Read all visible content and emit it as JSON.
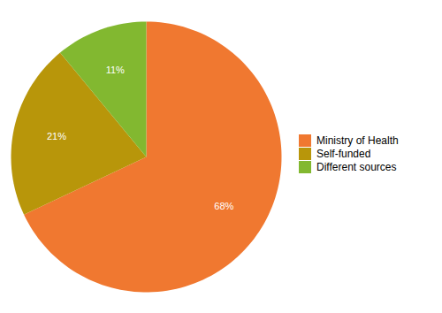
{
  "chart_data": {
    "type": "pie",
    "categories": [
      "Ministry of Health",
      "Self-funded",
      "Different sources"
    ],
    "values": [
      68,
      21,
      11
    ],
    "value_labels": [
      "68%",
      "21%",
      "11%"
    ],
    "colors": [
      "#F07830",
      "#B8960A",
      "#82B830"
    ],
    "data_labels": true,
    "legend": "right"
  }
}
